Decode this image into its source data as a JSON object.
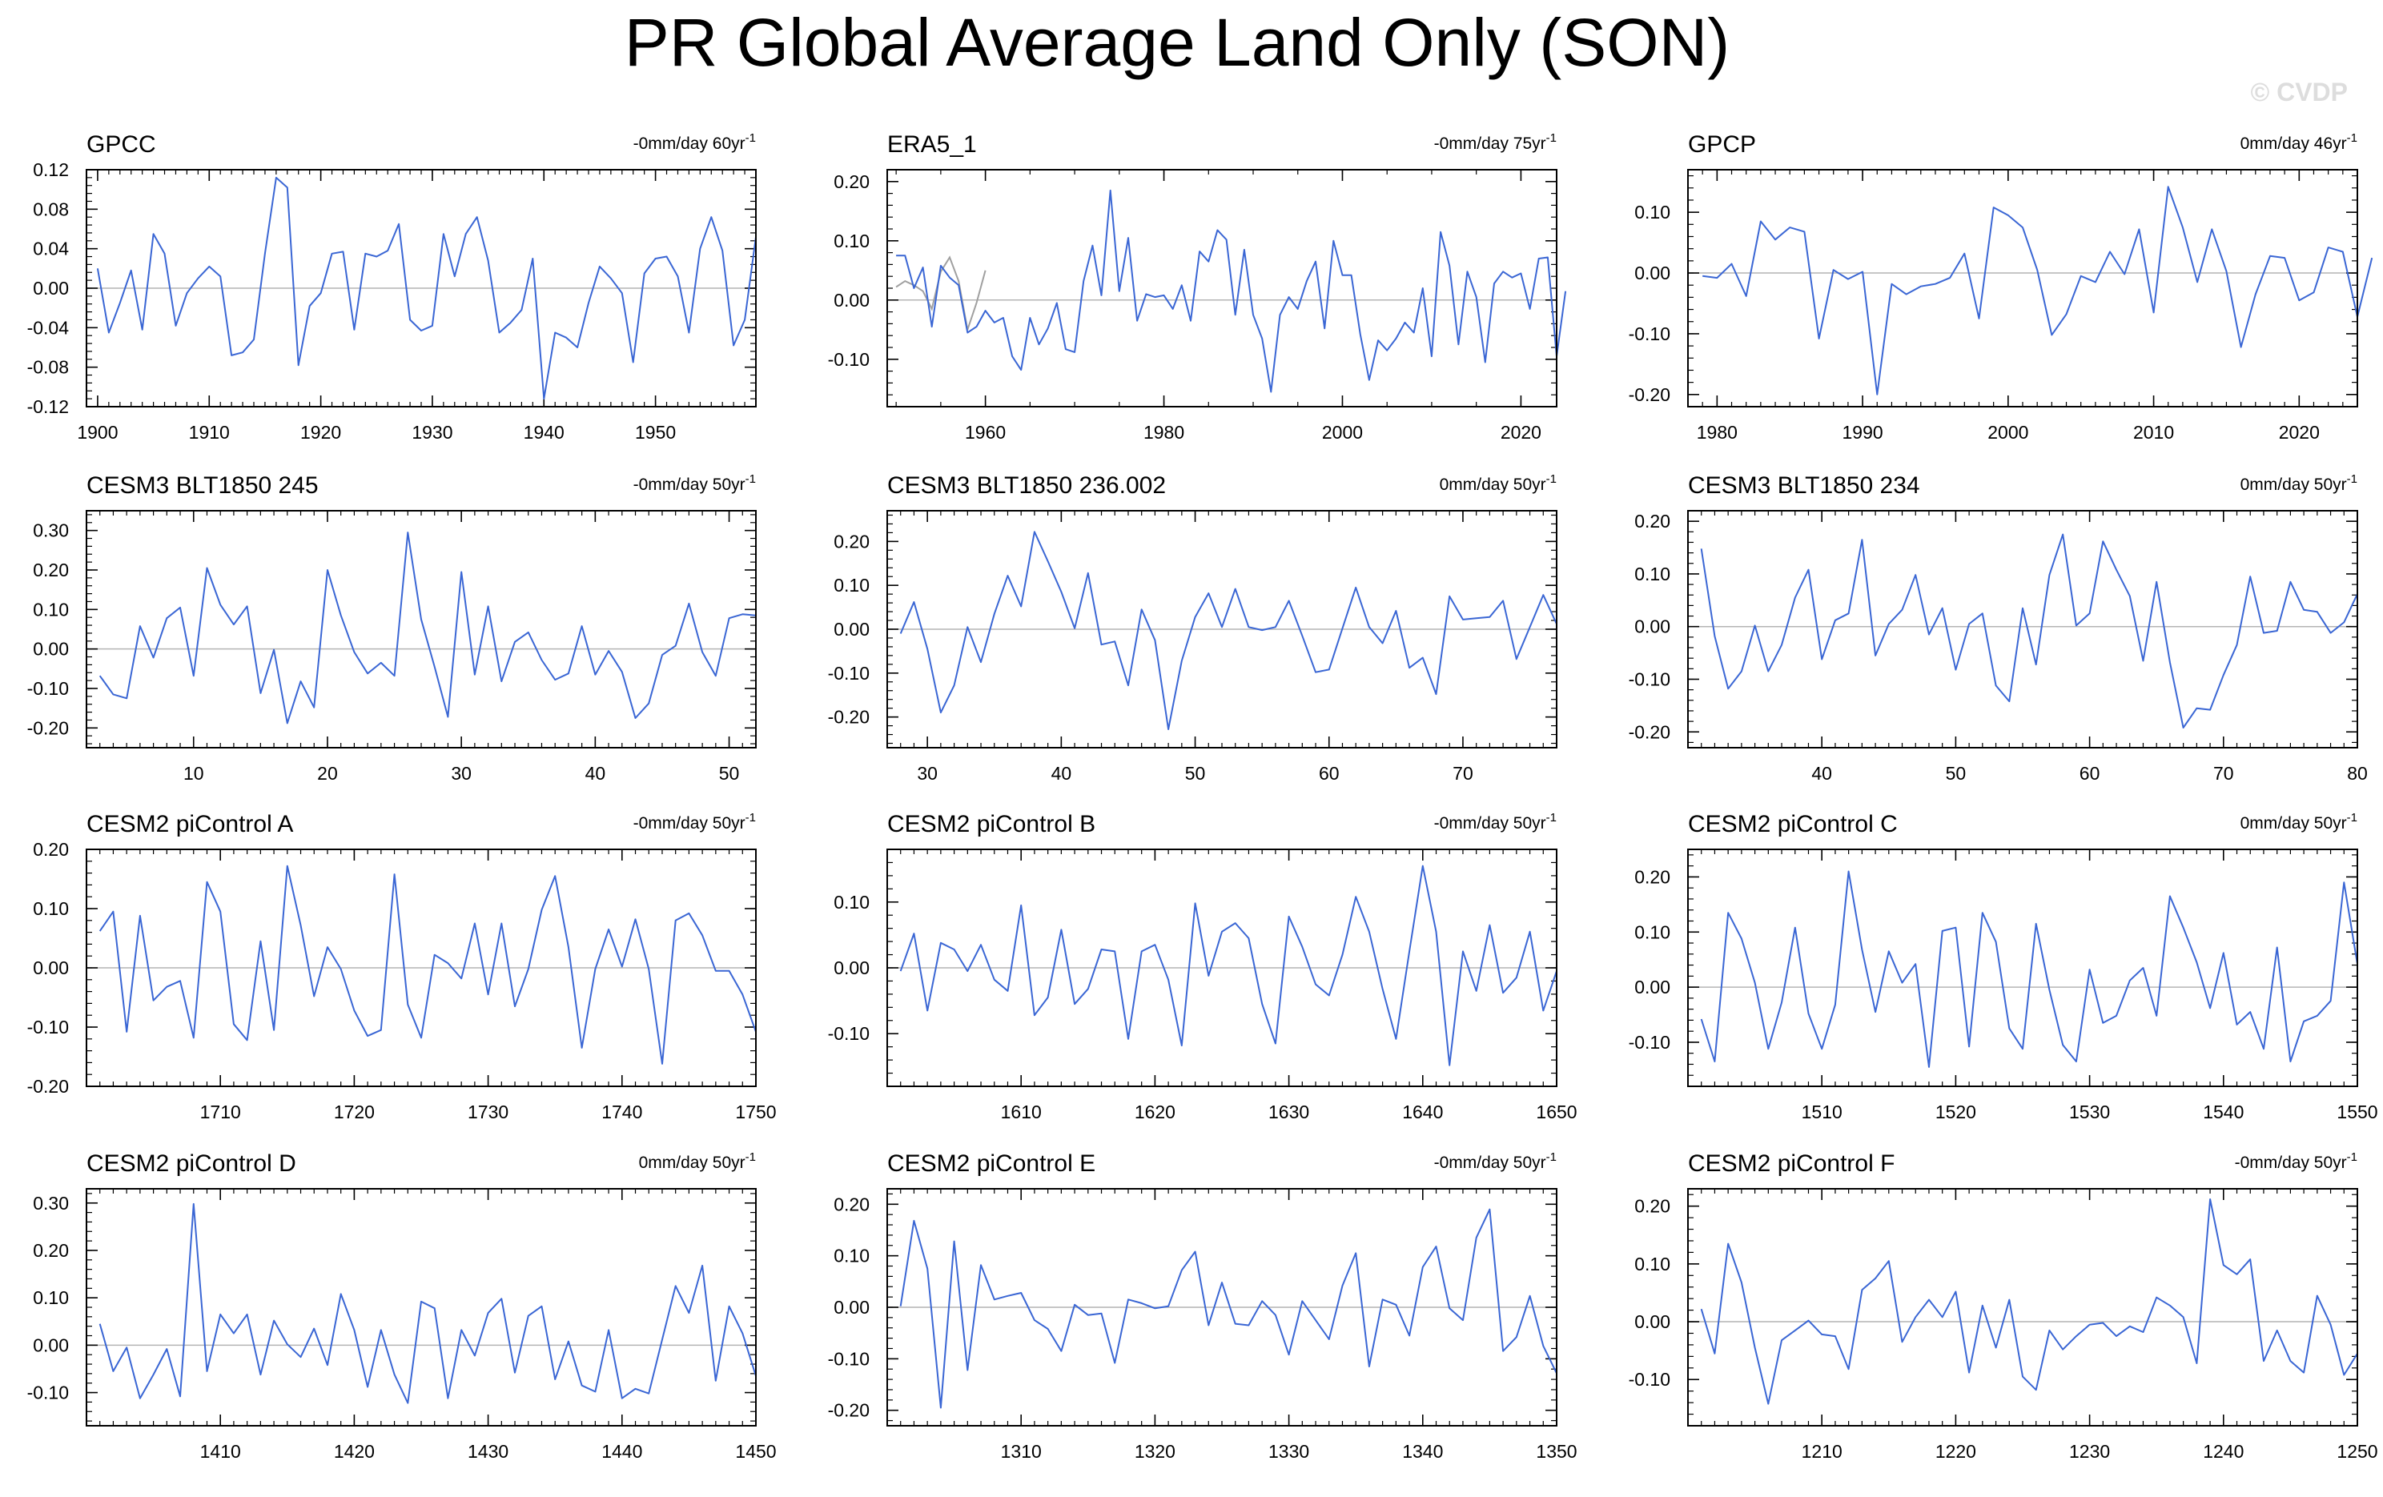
{
  "figure": {
    "title": "PR Global Average Land Only (SON)",
    "watermark": "© CVDP",
    "line_color": "#3a66d4",
    "secondary_line_color": "#a0a0a0",
    "zero_line_color": "#b4b4b4"
  },
  "chart_data": [
    {
      "type": "line",
      "title": "GPCC",
      "trend_label": "-0mm/day 60yr",
      "trend_sup": "-1",
      "xlim": [
        1899,
        1959
      ],
      "ylim": [
        -0.12,
        0.12
      ],
      "xticks": [
        1900,
        1910,
        1920,
        1930,
        1940,
        1950
      ],
      "yticks": [
        -0.12,
        -0.08,
        -0.04,
        0.0,
        0.04,
        0.08,
        0.12
      ],
      "ytick_labels": [
        "-0.12",
        "-0.08",
        "-0.04",
        "0.00",
        "0.04",
        "0.08",
        "0.12"
      ],
      "x_start": 1900,
      "values": [
        0.02,
        -0.045,
        -0.015,
        0.018,
        -0.042,
        0.055,
        0.035,
        -0.038,
        -0.005,
        0.01,
        0.022,
        0.012,
        -0.068,
        -0.065,
        -0.052,
        0.035,
        0.112,
        0.102,
        -0.078,
        -0.018,
        -0.005,
        0.035,
        0.037,
        -0.042,
        0.035,
        0.032,
        0.038,
        0.065,
        -0.032,
        -0.043,
        -0.038,
        0.055,
        0.012,
        0.055,
        0.072,
        0.028,
        -0.045,
        -0.035,
        -0.022,
        0.03,
        -0.112,
        -0.045,
        -0.05,
        -0.06,
        -0.015,
        0.022,
        0.01,
        -0.005,
        -0.075,
        0.015,
        0.03,
        0.032,
        0.012,
        -0.045,
        0.04,
        0.072,
        0.038,
        -0.058,
        -0.032,
        0.052
      ]
    },
    {
      "type": "line",
      "title": "ERA5_1",
      "trend_label": "-0mm/day 75yr",
      "trend_sup": "-1",
      "xlim": [
        1949,
        2024
      ],
      "ylim": [
        -0.18,
        0.22
      ],
      "xticks": [
        1960,
        1980,
        2000,
        2020
      ],
      "yticks": [
        -0.1,
        0.0,
        0.1,
        0.2
      ],
      "ytick_labels": [
        "-0.10",
        "0.00",
        "0.10",
        "0.20"
      ],
      "x_start": 1950,
      "values": [
        0.075,
        0.075,
        0.02,
        0.055,
        -0.045,
        0.058,
        0.038,
        0.025,
        -0.055,
        -0.045,
        -0.018,
        -0.038,
        -0.03,
        -0.095,
        -0.118,
        -0.03,
        -0.075,
        -0.048,
        -0.005,
        -0.083,
        -0.088,
        0.032,
        0.092,
        0.008,
        0.185,
        0.015,
        0.105,
        -0.035,
        0.01,
        0.005,
        0.008,
        -0.015,
        0.025,
        -0.035,
        0.082,
        0.065,
        0.118,
        0.102,
        -0.025,
        0.085,
        -0.025,
        -0.065,
        -0.155,
        -0.025,
        0.005,
        -0.015,
        0.032,
        0.065,
        -0.048,
        0.1,
        0.042,
        0.042,
        -0.058,
        -0.135,
        -0.068,
        -0.085,
        -0.065,
        -0.038,
        -0.055,
        0.02,
        -0.095,
        0.115,
        0.058,
        -0.075,
        0.048,
        0.005,
        -0.105,
        0.028,
        0.048,
        0.038,
        0.045,
        -0.015,
        0.07,
        0.072,
        -0.095,
        0.015
      ],
      "secondary_x_start": 1950,
      "secondary_values": [
        0.022,
        0.032,
        0.025,
        0.015,
        -0.015,
        0.048,
        0.072,
        0.032,
        -0.05,
        -0.005,
        0.05
      ]
    },
    {
      "type": "line",
      "title": "GPCP",
      "trend_label": "0mm/day 46yr",
      "trend_sup": "-1",
      "xlim": [
        1978,
        2024
      ],
      "ylim": [
        -0.22,
        0.17
      ],
      "xticks": [
        1980,
        1990,
        2000,
        2010,
        2020
      ],
      "yticks": [
        -0.2,
        -0.1,
        0.0,
        0.1
      ],
      "ytick_labels": [
        "-0.20",
        "-0.10",
        "0.00",
        "0.10"
      ],
      "x_start": 1979,
      "values": [
        -0.005,
        -0.008,
        0.015,
        -0.038,
        0.085,
        0.055,
        0.075,
        0.068,
        -0.108,
        0.005,
        -0.01,
        0.002,
        -0.2,
        -0.018,
        -0.035,
        -0.022,
        -0.018,
        -0.008,
        0.032,
        -0.075,
        0.108,
        0.095,
        0.075,
        0.005,
        -0.102,
        -0.068,
        -0.005,
        -0.015,
        0.035,
        -0.002,
        0.072,
        -0.065,
        0.142,
        0.075,
        -0.015,
        0.072,
        0.003,
        -0.122,
        -0.035,
        0.028,
        0.025,
        -0.045,
        -0.032,
        0.042,
        0.035,
        -0.072,
        0.025
      ]
    },
    {
      "type": "line",
      "title": "CESM3 BLT1850 245",
      "trend_label": "-0mm/day 50yr",
      "trend_sup": "-1",
      "xlim": [
        2,
        52
      ],
      "ylim": [
        -0.25,
        0.35
      ],
      "xticks": [
        10,
        20,
        30,
        40,
        50
      ],
      "yticks": [
        -0.2,
        -0.1,
        0.0,
        0.1,
        0.2,
        0.3
      ],
      "ytick_labels": [
        "-0.20",
        "-0.10",
        "0.00",
        "0.10",
        "0.20",
        "0.30"
      ],
      "x_start": 3,
      "values": [
        -0.068,
        -0.115,
        -0.125,
        0.058,
        -0.022,
        0.078,
        0.105,
        -0.068,
        0.205,
        0.112,
        0.062,
        0.108,
        -0.112,
        -0.002,
        -0.188,
        -0.082,
        -0.148,
        0.2,
        0.085,
        -0.008,
        -0.062,
        -0.035,
        -0.068,
        0.295,
        0.075,
        -0.045,
        -0.172,
        0.195,
        -0.065,
        0.108,
        -0.082,
        0.018,
        0.042,
        -0.028,
        -0.078,
        -0.062,
        0.058,
        -0.065,
        -0.005,
        -0.058,
        -0.175,
        -0.138,
        -0.015,
        0.008,
        0.115,
        -0.008,
        -0.068,
        0.078,
        0.088,
        0.085
      ]
    },
    {
      "type": "line",
      "title": "CESM3 BLT1850 236.002",
      "trend_label": "0mm/day 50yr",
      "trend_sup": "-1",
      "xlim": [
        27,
        77
      ],
      "ylim": [
        -0.27,
        0.27
      ],
      "xticks": [
        30,
        40,
        50,
        60,
        70
      ],
      "yticks": [
        -0.2,
        -0.1,
        0.0,
        0.1,
        0.2
      ],
      "ytick_labels": [
        "-0.20",
        "-0.10",
        "0.00",
        "0.10",
        "0.20"
      ],
      "x_start": 28,
      "values": [
        -0.01,
        0.062,
        -0.045,
        -0.19,
        -0.128,
        0.005,
        -0.075,
        0.035,
        0.122,
        0.052,
        0.222,
        0.155,
        0.085,
        0.002,
        0.128,
        -0.035,
        -0.028,
        -0.128,
        0.045,
        -0.025,
        -0.228,
        -0.072,
        0.028,
        0.082,
        0.005,
        0.092,
        0.005,
        -0.002,
        0.005,
        0.065,
        -0.015,
        -0.098,
        -0.092,
        0.002,
        0.095,
        0.005,
        -0.032,
        0.042,
        -0.088,
        -0.065,
        -0.148,
        0.075,
        0.022,
        0.025,
        0.028,
        0.065,
        -0.068,
        0.005,
        0.078,
        0.012
      ]
    },
    {
      "type": "line",
      "title": "CESM3 BLT1850 234",
      "trend_label": "0mm/day 50yr",
      "trend_sup": "-1",
      "xlim": [
        30,
        80
      ],
      "ylim": [
        -0.23,
        0.22
      ],
      "xticks": [
        40,
        50,
        60,
        70,
        80
      ],
      "yticks": [
        -0.2,
        -0.1,
        0.0,
        0.1,
        0.2
      ],
      "ytick_labels": [
        "-0.20",
        "-0.10",
        "0.00",
        "0.10",
        "0.20"
      ],
      "x_start": 31,
      "values": [
        0.148,
        -0.018,
        -0.118,
        -0.085,
        0.002,
        -0.085,
        -0.035,
        0.055,
        0.108,
        -0.062,
        0.012,
        0.025,
        0.165,
        -0.055,
        0.005,
        0.032,
        0.098,
        -0.015,
        0.035,
        -0.082,
        0.005,
        0.025,
        -0.112,
        -0.142,
        0.035,
        -0.072,
        0.098,
        0.175,
        0.002,
        0.025,
        0.162,
        0.108,
        0.058,
        -0.065,
        0.085,
        -0.068,
        -0.192,
        -0.155,
        -0.158,
        -0.092,
        -0.035,
        0.095,
        -0.012,
        -0.008,
        0.085,
        0.032,
        0.028,
        -0.012,
        0.008,
        0.062
      ]
    },
    {
      "type": "line",
      "title": "CESM2 piControl A",
      "trend_label": "-0mm/day 50yr",
      "trend_sup": "-1",
      "xlim": [
        1700,
        1750
      ],
      "ylim": [
        -0.2,
        0.2
      ],
      "xticks": [
        1710,
        1720,
        1730,
        1740,
        1750
      ],
      "yticks": [
        -0.2,
        -0.1,
        0.0,
        0.1,
        0.2
      ],
      "ytick_labels": [
        "-0.20",
        "-0.10",
        "0.00",
        "0.10",
        "0.20"
      ],
      "x_start": 1701,
      "values": [
        0.062,
        0.095,
        -0.108,
        0.088,
        -0.055,
        -0.032,
        -0.022,
        -0.118,
        0.145,
        0.095,
        -0.095,
        -0.122,
        0.045,
        -0.105,
        0.172,
        0.072,
        -0.048,
        0.035,
        -0.002,
        -0.072,
        -0.115,
        -0.105,
        0.158,
        -0.062,
        -0.118,
        0.022,
        0.008,
        -0.018,
        0.075,
        -0.045,
        0.075,
        -0.065,
        -0.002,
        0.098,
        0.155,
        0.035,
        -0.135,
        -0.002,
        0.065,
        0.002,
        0.082,
        -0.002,
        -0.162,
        0.08,
        0.092,
        0.055,
        -0.005,
        -0.005,
        -0.045,
        -0.108
      ]
    },
    {
      "type": "line",
      "title": "CESM2 piControl B",
      "trend_label": "-0mm/day 50yr",
      "trend_sup": "-1",
      "xlim": [
        1600,
        1650
      ],
      "ylim": [
        -0.18,
        0.18
      ],
      "xticks": [
        1610,
        1620,
        1630,
        1640,
        1650
      ],
      "yticks": [
        -0.1,
        0.0,
        0.1
      ],
      "ytick_labels": [
        "-0.10",
        "0.00",
        "0.10"
      ],
      "x_start": 1601,
      "values": [
        -0.005,
        0.052,
        -0.065,
        0.038,
        0.028,
        -0.005,
        0.035,
        -0.018,
        -0.035,
        0.095,
        -0.072,
        -0.045,
        0.058,
        -0.055,
        -0.032,
        0.028,
        0.025,
        -0.108,
        0.025,
        0.035,
        -0.018,
        -0.118,
        0.098,
        -0.012,
        0.055,
        0.068,
        0.045,
        -0.055,
        -0.115,
        0.078,
        0.032,
        -0.025,
        -0.042,
        0.02,
        0.108,
        0.055,
        -0.032,
        -0.108,
        0.025,
        0.155,
        0.055,
        -0.148,
        0.025,
        -0.035,
        0.065,
        -0.038,
        -0.015,
        0.055,
        -0.065,
        -0.005
      ]
    },
    {
      "type": "line",
      "title": "CESM2 piControl C",
      "trend_label": "0mm/day 50yr",
      "trend_sup": "-1",
      "xlim": [
        1500,
        1550
      ],
      "ylim": [
        -0.18,
        0.25
      ],
      "xticks": [
        1510,
        1520,
        1530,
        1540,
        1550
      ],
      "yticks": [
        -0.1,
        0.0,
        0.1,
        0.2
      ],
      "ytick_labels": [
        "-0.10",
        "0.00",
        "0.10",
        "0.20"
      ],
      "x_start": 1501,
      "values": [
        -0.058,
        -0.135,
        0.135,
        0.088,
        0.008,
        -0.112,
        -0.028,
        0.108,
        -0.048,
        -0.112,
        -0.032,
        0.21,
        0.068,
        -0.045,
        0.065,
        0.008,
        0.042,
        -0.145,
        0.102,
        0.108,
        -0.108,
        0.135,
        0.082,
        -0.075,
        -0.112,
        0.115,
        -0.005,
        -0.105,
        -0.135,
        0.032,
        -0.065,
        -0.052,
        0.012,
        0.035,
        -0.052,
        0.165,
        0.108,
        0.045,
        -0.038,
        0.062,
        -0.068,
        -0.045,
        -0.112,
        0.072,
        -0.135,
        -0.062,
        -0.052,
        -0.025,
        0.19,
        0.042
      ]
    },
    {
      "type": "line",
      "title": "CESM2 piControl D",
      "trend_label": "0mm/day 50yr",
      "trend_sup": "-1",
      "xlim": [
        1400,
        1450
      ],
      "ylim": [
        -0.17,
        0.33
      ],
      "xticks": [
        1410,
        1420,
        1430,
        1440,
        1450
      ],
      "yticks": [
        -0.1,
        0.0,
        0.1,
        0.2,
        0.3
      ],
      "ytick_labels": [
        "-0.10",
        "0.00",
        "0.10",
        "0.20",
        "0.30"
      ],
      "x_start": 1401,
      "values": [
        0.045,
        -0.055,
        -0.005,
        -0.112,
        -0.062,
        -0.008,
        -0.108,
        0.298,
        -0.055,
        0.065,
        0.025,
        0.065,
        -0.062,
        0.052,
        0.002,
        -0.025,
        0.035,
        -0.042,
        0.108,
        0.032,
        -0.088,
        0.032,
        -0.062,
        -0.122,
        0.092,
        0.078,
        -0.112,
        0.032,
        -0.022,
        0.068,
        0.098,
        -0.058,
        0.062,
        0.082,
        -0.072,
        0.008,
        -0.085,
        -0.098,
        0.032,
        -0.112,
        -0.092,
        -0.102,
        0.012,
        0.125,
        0.068,
        0.168,
        -0.075,
        0.082,
        0.025,
        -0.065
      ]
    },
    {
      "type": "line",
      "title": "CESM2 piControl E",
      "trend_label": "-0mm/day 50yr",
      "trend_sup": "-1",
      "xlim": [
        1300,
        1350
      ],
      "ylim": [
        -0.23,
        0.23
      ],
      "xticks": [
        1310,
        1320,
        1330,
        1340,
        1350
      ],
      "yticks": [
        -0.2,
        -0.1,
        0.0,
        0.1,
        0.2
      ],
      "ytick_labels": [
        "-0.20",
        "-0.10",
        "0.00",
        "0.10",
        "0.20"
      ],
      "x_start": 1301,
      "values": [
        0.002,
        0.168,
        0.075,
        -0.195,
        0.128,
        -0.122,
        0.082,
        0.015,
        0.022,
        0.028,
        -0.025,
        -0.042,
        -0.085,
        0.005,
        -0.015,
        -0.012,
        -0.108,
        0.015,
        0.008,
        -0.002,
        0.002,
        0.072,
        0.108,
        -0.035,
        0.048,
        -0.032,
        -0.035,
        0.012,
        -0.015,
        -0.092,
        0.012,
        -0.025,
        -0.062,
        0.042,
        0.105,
        -0.115,
        0.015,
        0.005,
        -0.055,
        0.078,
        0.118,
        -0.002,
        -0.025,
        0.135,
        0.19,
        -0.085,
        -0.058,
        0.022,
        -0.075,
        -0.128
      ]
    },
    {
      "type": "line",
      "title": "CESM2 piControl F",
      "trend_label": "-0mm/day 50yr",
      "trend_sup": "-1",
      "xlim": [
        1200,
        1250
      ],
      "ylim": [
        -0.18,
        0.23
      ],
      "xticks": [
        1210,
        1220,
        1230,
        1240,
        1250
      ],
      "yticks": [
        -0.1,
        0.0,
        0.1,
        0.2
      ],
      "ytick_labels": [
        "-0.10",
        "0.00",
        "0.10",
        "0.20"
      ],
      "x_start": 1201,
      "values": [
        0.022,
        -0.055,
        0.135,
        0.068,
        -0.045,
        -0.142,
        -0.032,
        -0.015,
        0.002,
        -0.022,
        -0.025,
        -0.082,
        0.055,
        0.075,
        0.105,
        -0.035,
        0.008,
        0.038,
        0.008,
        0.052,
        -0.088,
        0.028,
        -0.045,
        0.038,
        -0.095,
        -0.118,
        -0.015,
        -0.048,
        -0.025,
        -0.005,
        -0.002,
        -0.025,
        -0.008,
        -0.018,
        0.042,
        0.028,
        0.008,
        -0.072,
        0.212,
        0.098,
        0.082,
        0.108,
        -0.068,
        -0.015,
        -0.068,
        -0.088,
        0.045,
        -0.005,
        -0.092,
        -0.055
      ]
    }
  ]
}
